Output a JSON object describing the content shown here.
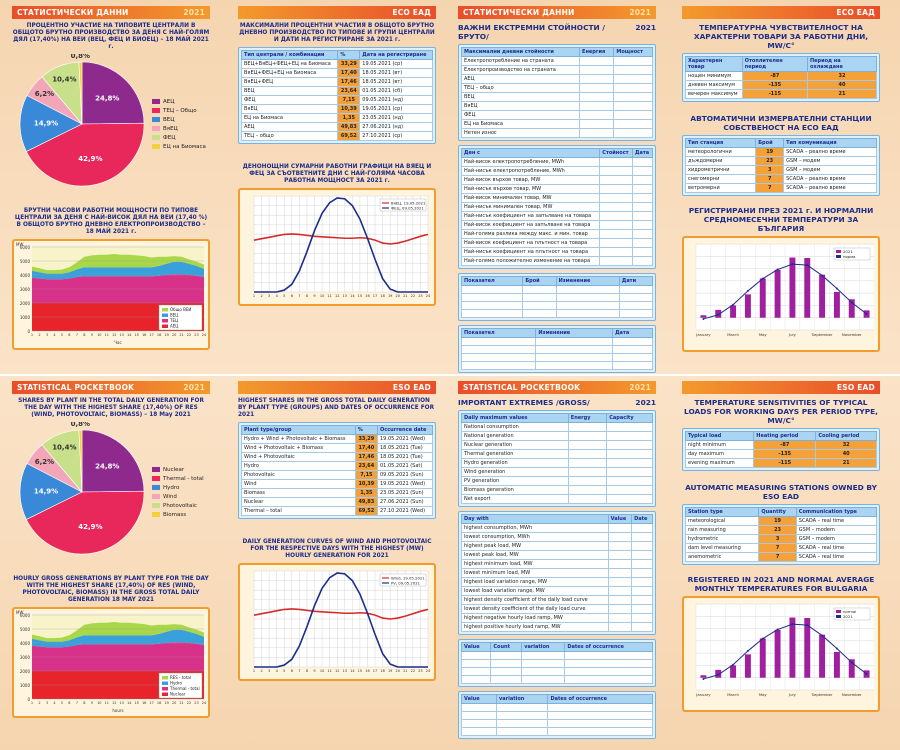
{
  "bg": {
    "p1": {
      "band": "СТАТИСТИЧЕСКИ ДАННИ",
      "year": "2021",
      "pie_title": "ПРОЦЕНТНО УЧАСТИЕ НА ТИПОВИТЕ ЦЕНТРАЛИ В ОБЩОТО БРУТНО ПРОИЗВОДСТВО ЗА ДЕНЯ С НАЙ-ГОЛЯМ ДЯЛ (17,40%) НА ВЕИ (ВЕЦ, ФЕЦ И БИОЕЦ) – 18 МАЙ 2021 г.",
      "legend": [
        "АЕЦ",
        "ТЕЦ – Общо",
        "ВЕЦ",
        "ВяЕЦ",
        "ФЕЦ",
        "ЕЦ на Биомаса"
      ],
      "area_title": "БРУТНИ ЧАСОВИ РАБОТНИ МОЩНОСТИ ПО ТИПОВЕ ЦЕНТРАЛИ ЗА ДЕНЯ С НАЙ-ВИСОК ДЯЛ НА ВЕИ (17,40 %) В ОБЩОТО БРУТНО ДНЕВНО ЕЛЕКТРОПРОИЗВОДСТВО – 18 МАЙ 2021 г.",
      "area_legend": [
        "Общо ВЕИ",
        "ВЕЦ",
        "ТЕЦ",
        "АЕЦ"
      ],
      "y_unit": "MW",
      "x_unit": "Час"
    },
    "p2": {
      "band": "ЕСО ЕАД",
      "title": "МАКСИМАЛНИ ПРОЦЕНТНИ УЧАСТИЯ В ОБЩОТО БРУТНО ДНЕВНО ПРОИЗВОДСТВО ПО ТИПОВЕ И ГРУПИ ЦЕНТРАЛИ И ДАТИ НА РЕГИСТРИРАНЕ ЗА 2021 г.",
      "col1": "Тип централи / комбинации",
      "col2": "%",
      "col3": "Дата на регистриране",
      "rows": [
        [
          "ВЕЦ+ВяЕЦ+ФЕЦ+ЕЦ на Биомаса",
          "33,29",
          "19.05.2021 (ср)"
        ],
        [
          "ВяЕЦ+ФЕЦ+ЕЦ на Биомаса",
          "17,40",
          "18.05.2021 (вт)"
        ],
        [
          "ВяЕЦ+ФЕЦ",
          "17,46",
          "18.05.2021 (вт)"
        ],
        [
          "ВЕЦ",
          "23,64",
          "01.05.2021 (сб)"
        ],
        [
          "ФЕЦ",
          "7,15",
          "09.05.2021 (нд)"
        ],
        [
          "ВяЕЦ",
          "10,39",
          "19.05.2021 (ср)"
        ],
        [
          "ЕЦ на Биомаса",
          "1,35",
          "23.05.2021 (нд)"
        ],
        [
          "АЕЦ",
          "49,83",
          "27.06.2021 (нд)"
        ],
        [
          "ТЕЦ – общо",
          "69,52",
          "27.10.2021 (ср)"
        ]
      ],
      "chart_title": "ДЕНОНОЩНИ СУМАРНИ РАБОТНИ ГРАФИЦИ НА ВЯЕЦ И ФЕЦ ЗА СЪОТВЕТНИТЕ ДНИ С НАЙ-ГОЛЯМА ЧАСОВА РАБОТНА МОЩНОСТ ЗА 2021 г.",
      "legend": [
        "ВяЕЦ, 19.05.2021",
        "ФЕЦ, 09.05.2021"
      ]
    },
    "p3": {
      "band": "СТАТИСТИЧЕСКИ ДАННИ",
      "year": "2021",
      "title": "ВАЖНИ ЕКСТРЕМНИ СТОЙНОСТИ /БРУТО/",
      "h1": "Максимални дневни стойности",
      "h1a": "Енергия",
      "h1b": "Мощност",
      "rows1": [
        "Електропотребление на страната",
        "Електропроизводство на страната",
        "АЕЦ",
        "ТЕЦ – общо",
        "ВЕЦ",
        "ВяЕЦ",
        "ФЕЦ",
        "ЕЦ на Биомаса",
        "Нетен износ"
      ],
      "h2": "Ден с",
      "h2a": "Стойност",
      "h2b": "Дата",
      "rows2": [
        "Най-висок електропотребление, MWh",
        "Най-нисък електропотребление, MWh",
        "Най-висок върхов товар, MW",
        "Най-нисък върхов товар, MW",
        "Най-висок минимален товар, MW",
        "Най-нисък минимален товар, MW",
        "Най-нисък коефициент на запълване на товара",
        "Най-висок коефициент на запълване на товара",
        "Най-голяма разлика между макс. и мин. товар",
        "Най-висок коефициент на плътност на товара",
        "Най-нисък коефициент на плътност на товара",
        "Най-голямо положително изменение на товара"
      ],
      "h3": "Показател",
      "h3a": "Брой",
      "h3b": "Изменение",
      "h3c": "Дати",
      "h4": "Показател",
      "h4a": "Изменение",
      "h4b": "Дата"
    },
    "p4": {
      "band": "ЕСО ЕАД",
      "t1": "ТЕМПЕРАТУРНА ЧУВСТВИТЕЛНОСТ НА ХАРАКТЕРНИ ТОВАРИ ЗА РАБОТНИ ДНИ, MW/C°",
      "c1": "Характерен товар",
      "c2": "Отоплителен период",
      "c3": "Период на охлаждане",
      "rows": [
        [
          "нощен минимум",
          "-87",
          "32"
        ],
        [
          "дневен максимум",
          "-135",
          "40"
        ],
        [
          "вечерен максимум",
          "-115",
          "21"
        ]
      ],
      "t2": "АВТОМАТИЧНИ ИЗМЕРВАТЕЛНИ СТАНЦИИ СОБСТВЕНОСТ НА ЕСО ЕАД",
      "s1": "Тип станция",
      "s2": "Брой",
      "s3": "Тип комуникация",
      "srows": [
        [
          "метеорологични",
          "19",
          "SCADA – реално време"
        ],
        [
          "дъждомерни",
          "23",
          "GSM – модем"
        ],
        [
          "хидрометрични",
          "3",
          "GSM – модем"
        ],
        [
          "снегомерни",
          "7",
          "SCADA – реално време"
        ],
        [
          "ветромерни",
          "7",
          "SCADA – реално време"
        ]
      ],
      "t3": "РЕГИСТРИРАНИ ПРЕЗ 2021 г. И НОРМАЛНИ СРЕДНОМЕСЕЧНИ ТЕМПЕРАТУРИ ЗА БЪЛГАРИЯ",
      "legend": [
        "2021",
        "норма"
      ]
    }
  },
  "en": {
    "p1": {
      "band": "STATISTICAL POCKETBOOK",
      "year": "2021",
      "pie_title": "SHARES BY PLANT IN THE TOTAL DAILY GENERATION FOR THE DAY WITH THE HIGHEST SHARE (17,40%) OF RES (WIND, PHOTOVOLTAIC, BIOMASS) – 18 May 2021",
      "legend": [
        "Nuclear",
        "Thermal - total",
        "Hydro",
        "Wind",
        "Photovoltaic",
        "Biomass"
      ],
      "area_title": "HOURLY GROSS GENERATIONS BY PLANT TYPE FOR THE DAY WITH THE HIGHEST SHARE (17,40%) OF RES (WIND, PHOTOVOLTAIC, BIOMASS) IN THE GROSS TOTAL DAILY GENERATION 18 MAY 2021",
      "area_legend": [
        "RES - total",
        "Hydro",
        "Thermal - total",
        "Nuclear"
      ],
      "y_unit": "MW",
      "x_unit": "hours"
    },
    "p2": {
      "band": "ESO EAD",
      "title": "HIGHEST SHARES IN THE GROSS TOTAL DAILY GENERATION BY PLANT TYPE (GROUPS) AND DATES OF OCCURRENCE FOR 2021",
      "col1": "Plant type/group",
      "col2": "%",
      "col3": "Occurrence date",
      "rows": [
        [
          "Hydro + Wind + Photovoltaic + Biomass",
          "33,29",
          "19.05.2021 (Wed)"
        ],
        [
          "Wind + Photovoltaic + Biomass",
          "17,40",
          "18.05.2021 (Tue)"
        ],
        [
          "Wind + Photovoltaic",
          "17,46",
          "18.05.2021 (Tue)"
        ],
        [
          "Hydro",
          "23,64",
          "01.05.2021 (Sat)"
        ],
        [
          "Photovoltaic",
          "7,15",
          "09.05.2021 (Sun)"
        ],
        [
          "Wind",
          "10,39",
          "19.05.2021 (Wed)"
        ],
        [
          "Biomass",
          "1,35",
          "23.05.2021 (Sun)"
        ],
        [
          "Nuclear",
          "49,83",
          "27.06.2021 (Sun)"
        ],
        [
          "Thermal – total",
          "69,52",
          "27.10.2021 (Wed)"
        ]
      ],
      "chart_title": "DAILY GENERATION CURVES OF WIND AND PHOTOVOLTAIC FOR THE RESPECTIVE DAYS WITH THE HIGHEST (MW) HOURLY GENERATION FOR 2021",
      "legend": [
        "Wind, 19.05.2021",
        "PV, 09.05.2021"
      ]
    },
    "p3": {
      "band": "STATISTICAL POCKETBOOK",
      "year": "2021",
      "title": "IMPORTANT EXTREMES /GROSS/",
      "h1": "Daily maximum values",
      "h1a": "Energy",
      "h1b": "Capacity",
      "rows1": [
        "National consumption",
        "National generation",
        "Nuclear generation",
        "Thermal generation",
        "Hydro generation",
        "Wind generation",
        "PV generation",
        "Biomass generation",
        "Net export"
      ],
      "h2": "Day with",
      "h2a": "Value",
      "h2b": "Date",
      "rows2": [
        "highest consumption, MWh",
        "lowest consumption, MWh",
        "highest peak load, MW",
        "lowest peak load, MW",
        "highest minimum load, MW",
        "lowest minimum load, MW",
        "highest load variation range, MW",
        "lowest load variation range, MW",
        "highest density coefficient of the daily load curve",
        "lowest density coefficient of the daily load curve",
        "highest negative hourly load ramp, MW",
        "highest positive hourly load ramp, MW"
      ],
      "h3": "Value",
      "h3a": "Count",
      "h3b": "variation",
      "h3c": "Dates of occurrence",
      "h4": "Value",
      "h4a": "variation",
      "h4b": "Dates of occurrence"
    },
    "p4": {
      "band": "ESO EAD",
      "t1": "TEMPERATURE SENSITIVITIES OF TYPICAL LOADS FOR WORKING DAYS PER PERIOD TYPE, MW/C°",
      "c1": "Typical load",
      "c2": "Heating period",
      "c3": "Cooling period",
      "rows": [
        [
          "night minimum",
          "-87",
          "32"
        ],
        [
          "day maximum",
          "-135",
          "40"
        ],
        [
          "evening maximum",
          "-115",
          "21"
        ]
      ],
      "t2": "AUTOMATIC MEASURING STATIONS OWNED BY ESO EAD",
      "s1": "Station type",
      "s2": "Quantity",
      "s3": "Communication type",
      "srows": [
        [
          "meteorological",
          "19",
          "SCADA – real time"
        ],
        [
          "rain measuring",
          "23",
          "GSM – modem"
        ],
        [
          "hydrometric",
          "3",
          "GSM – modem"
        ],
        [
          "dam level measuring",
          "7",
          "SCADA – real time"
        ],
        [
          "anemometric",
          "7",
          "SCADA – real time"
        ]
      ],
      "t3": "REGISTERED IN 2021 AND NORMAL AVERAGE MONTHLY TEMPERATURES FOR BULGARIA",
      "legend": [
        "normal",
        "2021"
      ]
    }
  },
  "pie": {
    "labels": [
      "24,8%",
      "42,9%",
      "14,9%",
      "6,2%",
      "10,4%",
      "0,8%"
    ],
    "values": [
      24.8,
      42.9,
      14.9,
      6.2,
      10.4,
      0.8
    ],
    "colors": [
      "#8e2a8e",
      "#e8285a",
      "#3a88d8",
      "#f2a6b8",
      "#c8e08a",
      "#f4d03a"
    ]
  },
  "chart_data": [
    {
      "type": "pie",
      "title": "Shares by plant – 18 May 2021",
      "categories": [
        "Nuclear",
        "Thermal - total",
        "Hydro",
        "Wind",
        "Photovoltaic",
        "Biomass"
      ],
      "values": [
        24.8,
        42.9,
        14.9,
        6.2,
        10.4,
        0.8
      ]
    },
    {
      "type": "area",
      "title": "Hourly gross generations – 18 May 2021",
      "x": [
        1,
        2,
        3,
        4,
        5,
        6,
        7,
        8,
        9,
        10,
        11,
        12,
        13,
        14,
        15,
        16,
        17,
        18,
        19,
        20,
        21,
        22,
        23,
        24
      ],
      "series": [
        {
          "name": "Nuclear",
          "values": [
            2000,
            2000,
            2000,
            2000,
            2000,
            2000,
            2000,
            2000,
            2000,
            2000,
            2000,
            2000,
            2000,
            2000,
            2000,
            2000,
            2000,
            2000,
            2000,
            2000,
            2000,
            2000,
            2000,
            2000
          ]
        },
        {
          "name": "Thermal - total",
          "values": [
            1800,
            1750,
            1700,
            1700,
            1700,
            1750,
            1850,
            1900,
            1900,
            1900,
            1900,
            1900,
            1900,
            1900,
            1900,
            1900,
            1900,
            1950,
            2000,
            2050,
            2050,
            2000,
            1950,
            1850
          ]
        },
        {
          "name": "Hydro",
          "values": [
            500,
            450,
            400,
            400,
            400,
            450,
            550,
            650,
            650,
            650,
            650,
            650,
            650,
            650,
            650,
            650,
            650,
            700,
            800,
            900,
            900,
            800,
            700,
            600
          ]
        },
        {
          "name": "RES - total",
          "values": [
            300,
            280,
            250,
            250,
            280,
            350,
            500,
            750,
            850,
            900,
            900,
            950,
            900,
            900,
            850,
            800,
            700,
            650,
            500,
            400,
            350,
            320,
            300,
            300
          ]
        }
      ],
      "ylim": [
        0,
        6000
      ],
      "ylabel": "MW",
      "xlabel": "hours"
    },
    {
      "type": "line",
      "title": "Daily generation curves of wind and PV",
      "x": [
        1,
        2,
        3,
        4,
        5,
        6,
        7,
        8,
        9,
        10,
        11,
        12,
        13,
        14,
        15,
        16,
        17,
        18,
        19,
        20,
        21,
        22,
        23,
        24
      ],
      "series": [
        {
          "name": "Wind, 19.05.2021",
          "values": [
            540,
            555,
            570,
            585,
            600,
            605,
            600,
            590,
            580,
            575,
            570,
            565,
            560,
            560,
            565,
            560,
            540,
            510,
            500,
            510,
            530,
            555,
            580,
            600
          ]
        },
        {
          "name": "PV, 09.05.2021",
          "values": [
            0,
            0,
            0,
            0,
            20,
            80,
            220,
            420,
            640,
            820,
            930,
            980,
            970,
            900,
            760,
            560,
            340,
            140,
            30,
            0,
            0,
            0,
            0,
            0
          ]
        }
      ],
      "ylim": [
        0,
        1000
      ]
    },
    {
      "type": "bar",
      "title": "Registered in 2021 and normal average monthly temperatures",
      "categories": [
        "Jan",
        "Feb",
        "Mar",
        "Apr",
        "May",
        "Jun",
        "Jul",
        "Aug",
        "Sep",
        "Oct",
        "Nov",
        "Dec"
      ],
      "series": [
        {
          "name": "normal",
          "values": [
            -0.5,
            1.2,
            5.3,
            10.9,
            15.9,
            19.6,
            21.8,
            21.4,
            17.2,
            11.9,
            6.2,
            1.5
          ]
        },
        {
          "name": "2021",
          "values": [
            1.0,
            3.2,
            5.0,
            9.5,
            16.0,
            19.5,
            24.5,
            24.3,
            17.5,
            10.5,
            7.5,
            3.0
          ]
        }
      ],
      "ylim": [
        -5,
        30
      ],
      "ylabel": "°C"
    }
  ],
  "colors": {
    "band": "#e94d2a",
    "accent": "#f39a2c",
    "heading": "#1c2d8c",
    "table_head": "#a9d4f2",
    "value_cell": "#f5a13a"
  },
  "months": [
    "January",
    "March",
    "May",
    "July",
    "September",
    "November"
  ]
}
